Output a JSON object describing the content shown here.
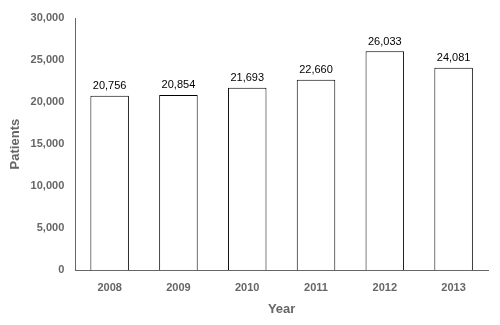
{
  "chart_data": {
    "type": "bar",
    "categories": [
      "2008",
      "2009",
      "2010",
      "2011",
      "2012",
      "2013"
    ],
    "values": [
      20756,
      20854,
      21693,
      22660,
      26033,
      24081
    ],
    "value_labels": [
      "20,756",
      "20,854",
      "21,693",
      "22,660",
      "26,033",
      "24,081"
    ],
    "data_labels": true,
    "color": "#ffffff",
    "xlabel": "Year",
    "ylabel": "Patients",
    "ylim": [
      0,
      30000
    ],
    "yticks": [
      0,
      {
        "value": 5000,
        "label": "5,000"
      },
      {
        "value": 10000,
        "label": "10,000"
      },
      {
        "value": 15000,
        "label": "15,000"
      },
      {
        "value": 20000,
        "label": "20,000"
      },
      {
        "value": 25000,
        "label": "25,000"
      },
      {
        "value": 30000,
        "label": "30,000"
      }
    ],
    "grid": false
  }
}
